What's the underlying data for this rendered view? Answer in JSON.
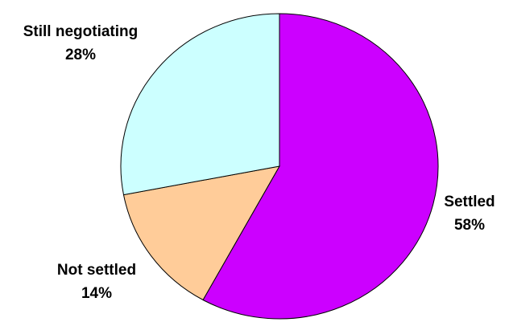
{
  "chart_data": {
    "type": "pie",
    "start_angle_deg": 0,
    "direction": "clockwise",
    "slices": [
      {
        "label": "Settled",
        "value": 58,
        "display": "58%",
        "color": "#cc00ff"
      },
      {
        "label": "Not settled",
        "value": 14,
        "display": "14%",
        "color": "#ffcc99"
      },
      {
        "label": "Still negotiating",
        "value": 28,
        "display": "28%",
        "color": "#ccffff"
      }
    ],
    "legend": "none",
    "data_labels": "category and percent, outside slices"
  }
}
